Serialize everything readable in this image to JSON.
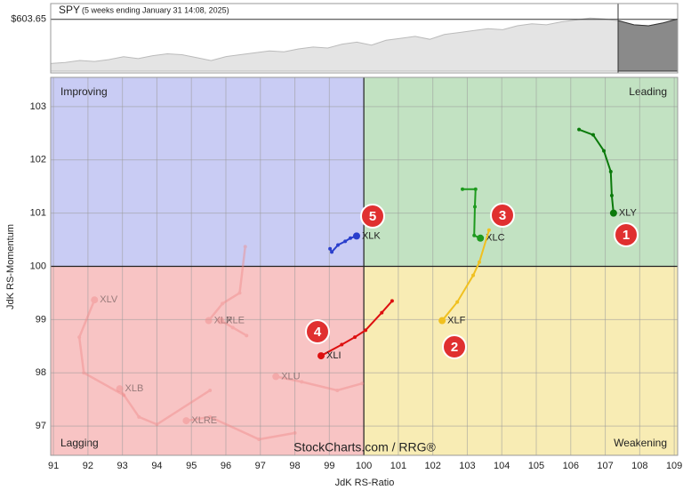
{
  "chart_data": {
    "type": "rrg",
    "x_label": "JdK RS-Ratio",
    "y_label": "JdK RS-Momentum",
    "xlim": [
      90.92,
      109.1
    ],
    "ylim": [
      96.45,
      103.55
    ],
    "xticks": [
      91,
      92,
      93,
      94,
      95,
      96,
      97,
      98,
      99,
      100,
      101,
      102,
      103,
      104,
      105,
      106,
      107,
      108,
      109
    ],
    "yticks": [
      97,
      98,
      99,
      100,
      101,
      102,
      103
    ],
    "grid": true,
    "reference_x": 100,
    "reference_y": 100,
    "quadrants": [
      {
        "name": "Improving",
        "color": "#c9ccf4",
        "text_color": "#3344cc"
      },
      {
        "name": "Leading",
        "color": "#c2e2c2",
        "text_color": "#1a8a1a"
      },
      {
        "name": "Lagging",
        "color": "#f8c4c4",
        "text_color": "#dd2222"
      },
      {
        "name": "Weakening",
        "color": "#f8ecb4",
        "text_color": "#e0a800"
      }
    ],
    "watermark": "StockCharts.com / RRG®",
    "series": [
      {
        "name": "XLV",
        "color": "#f08a8a",
        "faded": true,
        "x": [
          93.04,
          91.88,
          91.75,
          92.19
        ],
        "y": [
          97.58,
          98.0,
          98.67,
          99.37
        ]
      },
      {
        "name": "XLB",
        "color": "#f08a8a",
        "faded": true,
        "x": [
          95.54,
          94.0,
          93.48,
          92.92
        ],
        "y": [
          97.67,
          97.03,
          97.17,
          97.7
        ]
      },
      {
        "name": "XLRE",
        "color": "#f08a8a",
        "faded": true,
        "x": [
          98.0,
          96.96,
          95.54,
          94.85
        ],
        "y": [
          96.87,
          96.75,
          97.17,
          97.1
        ]
      },
      {
        "name": "XLU",
        "color": "#f08a8a",
        "faded": true,
        "x": [
          99.95,
          99.23,
          98.2,
          97.45
        ],
        "y": [
          97.8,
          97.67,
          97.83,
          97.93
        ]
      },
      {
        "name": "XLP",
        "color": "#f08a8a",
        "faded": true,
        "x": [
          96.56,
          96.4,
          95.9,
          95.5
        ],
        "y": [
          100.37,
          99.5,
          99.3,
          98.98
        ]
      },
      {
        "name": "XLE",
        "color": "#f08a8a",
        "faded": true,
        "x": [
          96.6,
          96.2,
          95.8,
          95.85
        ],
        "y": [
          98.7,
          98.85,
          99.0,
          98.98
        ]
      },
      {
        "name": "XLY",
        "color": "#0b7a0b",
        "faded": false,
        "x": [
          106.24,
          106.65,
          106.96,
          107.16,
          107.19,
          107.24
        ],
        "y": [
          102.57,
          102.47,
          102.17,
          101.78,
          101.33,
          101.0
        ]
      },
      {
        "name": "XLC",
        "color": "#1e9a1e",
        "faded": false,
        "x": [
          102.86,
          103.24,
          103.22,
          103.2,
          103.38
        ],
        "y": [
          101.45,
          101.45,
          101.12,
          100.58,
          100.53
        ]
      },
      {
        "name": "XLF",
        "color": "#f0c020",
        "faded": false,
        "x": [
          103.63,
          103.35,
          103.17,
          102.71,
          102.27
        ],
        "y": [
          100.68,
          100.08,
          99.83,
          99.33,
          98.98
        ]
      },
      {
        "name": "XLI",
        "color": "#dd1010",
        "faded": false,
        "x": [
          100.82,
          100.52,
          100.05,
          99.74,
          99.36,
          98.76
        ],
        "y": [
          99.35,
          99.13,
          98.8,
          98.67,
          98.53,
          98.32
        ]
      },
      {
        "name": "XLK",
        "color": "#2a3fcc",
        "faded": false,
        "x": [
          99.02,
          99.07,
          99.25,
          99.46,
          99.61,
          99.79
        ],
        "y": [
          100.33,
          100.27,
          100.4,
          100.47,
          100.53,
          100.57
        ]
      }
    ],
    "annotations": [
      "1",
      "2",
      "3",
      "4",
      "5"
    ],
    "benchmark": {
      "name": "SPY",
      "subtitle": "(5 weeks ending January 31 14:08, 2025)",
      "ylim": [
        550,
        620
      ],
      "reference": {
        "value": 603.65,
        "label": "$603.65"
      },
      "values": [
        558,
        559,
        561,
        560,
        562,
        565,
        563,
        566,
        568,
        567,
        564,
        561,
        565,
        567,
        569,
        571,
        570,
        573,
        575,
        574,
        578,
        580,
        577,
        582,
        584,
        586,
        583,
        588,
        590,
        592,
        594,
        593,
        597,
        599,
        598,
        601,
        603,
        605,
        604,
        602,
        598,
        597,
        600,
        604
      ]
    }
  }
}
